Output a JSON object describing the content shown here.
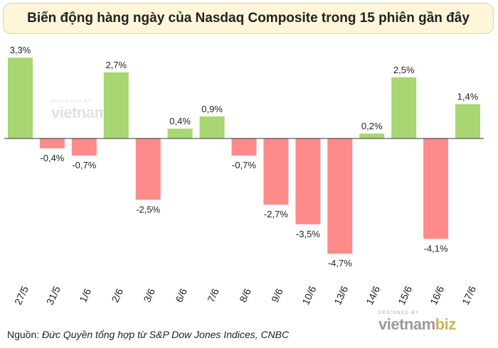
{
  "title": "Biến động hàng ngày của Nasdaq Composite trong 15 phiên gần đây",
  "source": {
    "prefix": "Nguồn: ",
    "text": "Đức Quyền tổng hợp từ S&P Dow Jones Indices, CNBC"
  },
  "watermark": {
    "sub": "DESIGNED BY",
    "brand_a": "vietnam",
    "brand_b": "biz"
  },
  "colors": {
    "positive": "#a8d672",
    "negative": "#ff8a8a",
    "axis": "#333333"
  },
  "chart_data": {
    "type": "bar",
    "title": "Biến động hàng ngày của Nasdaq Composite trong 15 phiên gần đây",
    "categories": [
      "27/5",
      "31/5",
      "1/6",
      "2/6",
      "3/6",
      "6/6",
      "7/6",
      "8/6",
      "9/6",
      "10/6",
      "13/6",
      "14/6",
      "15/6",
      "16/6",
      "17/6"
    ],
    "values": [
      3.3,
      -0.4,
      -0.7,
      2.7,
      -2.5,
      0.4,
      0.9,
      -0.7,
      -2.7,
      -3.5,
      -4.7,
      0.2,
      2.5,
      -4.1,
      1.4
    ],
    "labels": [
      "3,3%",
      "-0,4%",
      "-0,7%",
      "2,7%",
      "-2,5%",
      "0,4%",
      "0,9%",
      "-0,7%",
      "-2,7%",
      "-3,5%",
      "-4,7%",
      "0,2%",
      "2,5%",
      "-4,1%",
      "1,4%"
    ],
    "ylim": [
      -4.7,
      3.3
    ],
    "xlabel": "",
    "ylabel": "",
    "grid": false,
    "legend": "none"
  }
}
